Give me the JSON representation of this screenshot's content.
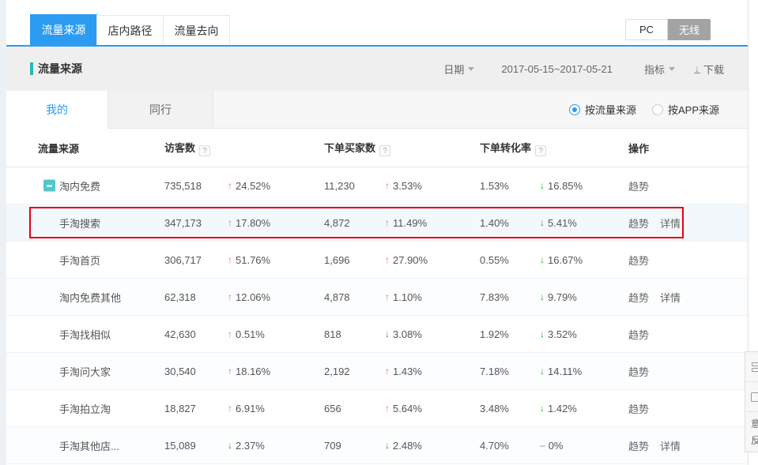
{
  "top_tabs": [
    {
      "label": "流量来源",
      "active": true
    },
    {
      "label": "店内路径",
      "active": false
    },
    {
      "label": "流量去向",
      "active": false
    }
  ],
  "device_toggle": {
    "pc_label": "PC",
    "wireless_label": "无线",
    "active": "无线"
  },
  "header": {
    "section_title": "流量来源",
    "date_label": "日期",
    "date_range": "2017-05-15~2017-05-21",
    "metrics_label": "指标",
    "download_label": "下载"
  },
  "view_tabs": [
    {
      "label": "我的",
      "active": true
    },
    {
      "label": "同行",
      "active": false
    }
  ],
  "source_radios": [
    {
      "label": "按流量来源",
      "selected": true
    },
    {
      "label": "按APP来源",
      "selected": false
    }
  ],
  "table": {
    "columns": [
      "流量来源",
      "访客数",
      "下单买家数",
      "下单转化率",
      "操作"
    ],
    "help_icon": "?",
    "rows": [
      {
        "name": "淘内免费",
        "expandable": true,
        "highlight": false,
        "visitors": "735,518",
        "visitors_change": "24.52%",
        "visitors_dir": "up",
        "buyers": "11,230",
        "buyers_change": "3.53%",
        "buyers_dir": "up",
        "conversion": "1.53%",
        "conversion_change": "16.85%",
        "conversion_dir": "down",
        "actions": [
          "趋势"
        ]
      },
      {
        "name": "手淘搜索",
        "expandable": false,
        "highlight": true,
        "visitors": "347,173",
        "visitors_change": "17.80%",
        "visitors_dir": "up",
        "buyers": "4,872",
        "buyers_change": "11.49%",
        "buyers_dir": "up",
        "conversion": "1.40%",
        "conversion_change": "5.41%",
        "conversion_dir": "down",
        "actions": [
          "趋势",
          "详情"
        ]
      },
      {
        "name": "手淘首页",
        "expandable": false,
        "highlight": false,
        "visitors": "306,717",
        "visitors_change": "51.76%",
        "visitors_dir": "up",
        "buyers": "1,696",
        "buyers_change": "27.90%",
        "buyers_dir": "up",
        "conversion": "0.55%",
        "conversion_change": "16.67%",
        "conversion_dir": "down",
        "actions": [
          "趋势"
        ]
      },
      {
        "name": "淘内免费其他",
        "expandable": false,
        "highlight": false,
        "visitors": "62,318",
        "visitors_change": "12.06%",
        "visitors_dir": "up",
        "buyers": "4,878",
        "buyers_change": "1.10%",
        "buyers_dir": "up",
        "conversion": "7.83%",
        "conversion_change": "9.79%",
        "conversion_dir": "down",
        "actions": [
          "趋势",
          "详情"
        ]
      },
      {
        "name": "手淘找相似",
        "expandable": false,
        "highlight": false,
        "visitors": "42,630",
        "visitors_change": "0.51%",
        "visitors_dir": "up",
        "buyers": "818",
        "buyers_change": "3.08%",
        "buyers_dir": "down",
        "conversion": "1.92%",
        "conversion_change": "3.52%",
        "conversion_dir": "down",
        "actions": [
          "趋势"
        ]
      },
      {
        "name": "手淘问大家",
        "expandable": false,
        "highlight": false,
        "visitors": "30,540",
        "visitors_change": "18.16%",
        "visitors_dir": "up",
        "buyers": "2,192",
        "buyers_change": "1.43%",
        "buyers_dir": "up",
        "conversion": "7.18%",
        "conversion_change": "14.11%",
        "conversion_dir": "down",
        "actions": [
          "趋势"
        ]
      },
      {
        "name": "手淘拍立淘",
        "expandable": false,
        "highlight": false,
        "visitors": "18,827",
        "visitors_change": "6.91%",
        "visitors_dir": "up",
        "buyers": "656",
        "buyers_change": "5.64%",
        "buyers_dir": "up",
        "conversion": "3.48%",
        "conversion_change": "1.42%",
        "conversion_dir": "down",
        "actions": [
          "趋势"
        ]
      },
      {
        "name": "手淘其他店...",
        "expandable": false,
        "highlight": false,
        "visitors": "15,089",
        "visitors_change": "2.37%",
        "visitors_dir": "down",
        "buyers": "709",
        "buyers_change": "2.48%",
        "buyers_dir": "down",
        "conversion": "4.70%",
        "conversion_change": "0%",
        "conversion_dir": "flat",
        "actions": [
          "趋势",
          "详情"
        ]
      }
    ]
  },
  "side_widget": {
    "visible_chars": [
      "意",
      "反"
    ]
  },
  "colors": {
    "accent_blue": "#2b9cf2",
    "teal_marker": "#2cb5b5",
    "up_red": "#ef6b6b",
    "down_green": "#15b215",
    "highlight_border": "#e60012",
    "toggle_gray": "#a3a3a3",
    "header_bar_bg": "#efefef"
  }
}
